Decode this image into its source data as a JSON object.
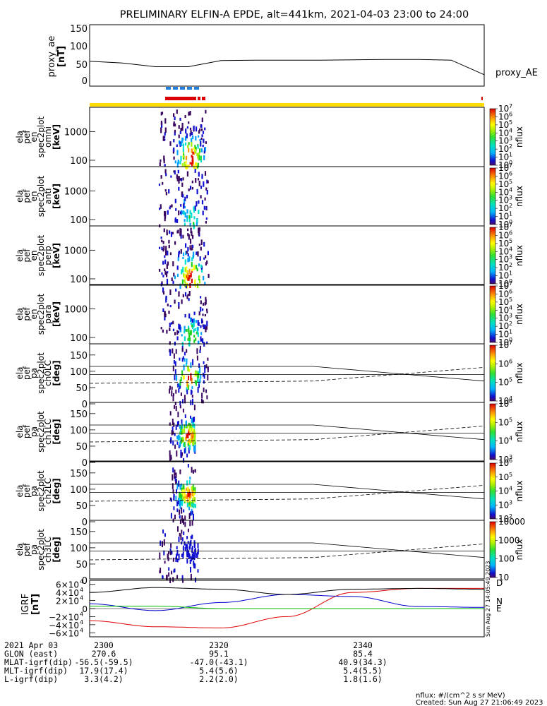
{
  "title": "PRELIMINARY ELFIN-A EPDE, alt=441km, 2021-04-03 23:00 to 24:00",
  "ae_panel": {
    "ylabel_top": "proxy_ae",
    "ylabel_bot": "[nT]",
    "label": "proxy_AE",
    "ticks": [
      "150",
      "100",
      "50",
      "0"
    ]
  },
  "spec_panels": [
    {
      "l1": "ela",
      "l2": "pef",
      "l3": "en",
      "l4": "spec2plot",
      "l5": "omni",
      "l6": "[keV]",
      "cbar_label": "nflux",
      "cbar_ticks": [
        "10",
        "10",
        "10",
        "10",
        "10",
        "10",
        "10",
        "10"
      ],
      "cbar_exps": [
        "7",
        "6",
        "5",
        "4",
        "3",
        "2",
        "1",
        "0"
      ]
    },
    {
      "l1": "ela",
      "l2": "pef",
      "l3": "en",
      "l4": "spec2plot",
      "l5": "anti",
      "l6": "[keV]",
      "cbar_label": "nflux",
      "cbar_ticks": [
        "10",
        "10",
        "10",
        "10",
        "10",
        "10",
        "10",
        "10"
      ],
      "cbar_exps": [
        "7",
        "6",
        "5",
        "4",
        "3",
        "2",
        "1",
        "0"
      ]
    },
    {
      "l1": "ela",
      "l2": "pef",
      "l3": "en",
      "l4": "spec2plot",
      "l5": "perp",
      "l6": "[keV]",
      "cbar_label": "nflux",
      "cbar_ticks": [
        "10",
        "10",
        "10",
        "10",
        "10",
        "10",
        "10",
        "10"
      ],
      "cbar_exps": [
        "7",
        "6",
        "5",
        "4",
        "3",
        "2",
        "1",
        "0"
      ]
    },
    {
      "l1": "ela",
      "l2": "pef",
      "l3": "en",
      "l4": "spec2plot",
      "l5": "para",
      "l6": "[keV]",
      "cbar_label": "nflux",
      "cbar_ticks": [
        "10",
        "10",
        "10",
        "10",
        "10",
        "10",
        "10",
        "10"
      ],
      "cbar_exps": [
        "7",
        "6",
        "5",
        "4",
        "3",
        "2",
        "1",
        "0"
      ]
    }
  ],
  "pa_panels": [
    {
      "l1": "ela",
      "l2": "pef",
      "l3": "pa",
      "l4": "spec2plot",
      "l5": "ch0LC",
      "l6": "[deg]",
      "cbar_label": "nflux",
      "cbar_ticks": [
        "10",
        "10",
        "10",
        "10"
      ],
      "cbar_exps": [
        "7",
        "6",
        "5",
        "4"
      ]
    },
    {
      "l1": "ela",
      "l2": "pef",
      "l3": "pa",
      "l4": "spec2plot",
      "l5": "ch1LC",
      "l6": "[deg]",
      "cbar_label": "nflux",
      "cbar_ticks": [
        "10",
        "10",
        "10",
        "10"
      ],
      "cbar_exps": [
        "6",
        "5",
        "4",
        "3"
      ]
    },
    {
      "l1": "ela",
      "l2": "pef",
      "l3": "pa",
      "l4": "spec2plot",
      "l5": "ch2LC",
      "l6": "[deg]",
      "cbar_label": "nflux",
      "cbar_ticks": [
        "10",
        "10",
        "10",
        "10",
        "10"
      ],
      "cbar_exps": [
        "6",
        "5",
        "4",
        "3",
        "2"
      ]
    },
    {
      "l1": "ela",
      "l2": "pef",
      "l3": "pa",
      "l4": "spec2plot",
      "l5": "ch3LC",
      "l6": "[deg]",
      "cbar_label": "nflux",
      "cbar_ticks": [
        "10000",
        "1000",
        "100",
        "10"
      ],
      "cbar_exps": [
        "",
        "",
        "",
        ""
      ]
    }
  ],
  "energy_ticks": [
    "1000",
    "100"
  ],
  "pa_ticks": [
    "150",
    "100",
    "50",
    "0"
  ],
  "igrf_panel": {
    "ylabel_top": "IGRF",
    "ylabel_bot": "[nT]",
    "ticks": [
      {
        "m": "6",
        "e": "4",
        "s": ""
      },
      {
        "m": "4",
        "e": "4",
        "s": ""
      },
      {
        "m": "2",
        "e": "4",
        "s": ""
      },
      {
        "m": "0",
        "e": "",
        "s": ""
      },
      {
        "m": "2",
        "e": "4",
        "s": "−"
      },
      {
        "m": "4",
        "e": "4",
        "s": "−"
      },
      {
        "m": "6",
        "e": "4",
        "s": "−"
      }
    ],
    "legend": [
      {
        "t": "D",
        "c": "#dd0000"
      },
      {
        "t": "N",
        "c": "#0000cc"
      },
      {
        "t": "E",
        "c": "#00bb00"
      }
    ]
  },
  "side_stamp": "Sun Aug 27 14:05:49 2023",
  "footer_rows": [
    {
      "label": "2021 Apr 03",
      "v1": "2300",
      "v2": "2320",
      "v3": "2340"
    },
    {
      "label": "GLON (east)",
      "v1": "270.6",
      "v2": "95.1",
      "v3": "85.4"
    },
    {
      "label": "MLAT-igrf(dip)",
      "v1": "-56.5(-59.5)",
      "v2": "-47.0(-43.1)",
      "v3": "40.9(34.3)"
    },
    {
      "label": "MLT-igrf(dip)",
      "v1": "17.9(17.4)",
      "v2": "5.4(5.6)",
      "v3": "5.4(5.5)"
    },
    {
      "label": "L-igrf(dip)",
      "v1": "3.3(4.2)",
      "v2": "2.2(2.0)",
      "v3": "1.8(1.6)"
    }
  ],
  "units_note": "nflux: #/(cm^2 s sr MeV)",
  "created_note": "Created: Sun Aug 27 21:06:49 2023",
  "colors": {
    "red": "#dd0000",
    "blue": "#0000cc",
    "green": "#00bb00",
    "yellow": "#ffdd00",
    "ae_bar_blue": "#1e7fe0"
  },
  "chart_data": [
    {
      "type": "line",
      "name": "proxy_AE",
      "x": [
        "23:00",
        "23:05",
        "23:10",
        "23:15",
        "23:20",
        "23:25",
        "23:30",
        "23:35",
        "23:40",
        "23:45",
        "23:50",
        "23:55",
        "24:00"
      ],
      "values": [
        55,
        50,
        40,
        40,
        57,
        58,
        58,
        58,
        59,
        60,
        60,
        58,
        18
      ],
      "ylim": [
        0,
        150
      ]
    },
    {
      "type": "heatmap",
      "name": "omni energy spectrogram",
      "x_range": [
        "23:10",
        "23:17"
      ],
      "ylim_keV": [
        60,
        7000
      ],
      "scale": "log",
      "peak_time": "23:15",
      "peak_energy_keV": 100
    },
    {
      "type": "line",
      "name": "IGRF components",
      "x": [
        "23:00",
        "23:10",
        "23:20",
        "23:30",
        "23:40",
        "23:50",
        "24:00"
      ],
      "series": [
        {
          "name": "D",
          "values": [
            -30000,
            -45000,
            -48000,
            -20000,
            40000,
            50000,
            50000
          ]
        },
        {
          "name": "N",
          "values": [
            12000,
            -5000,
            15000,
            35000,
            30000,
            5000,
            3000
          ]
        },
        {
          "name": "E",
          "values": [
            6000,
            6000,
            0,
            0,
            0,
            0,
            0
          ]
        },
        {
          "name": "B",
          "values": [
            40000,
            52000,
            48000,
            35000,
            48000,
            50000,
            48000
          ]
        }
      ],
      "ylim": [
        -60000,
        60000
      ]
    }
  ]
}
